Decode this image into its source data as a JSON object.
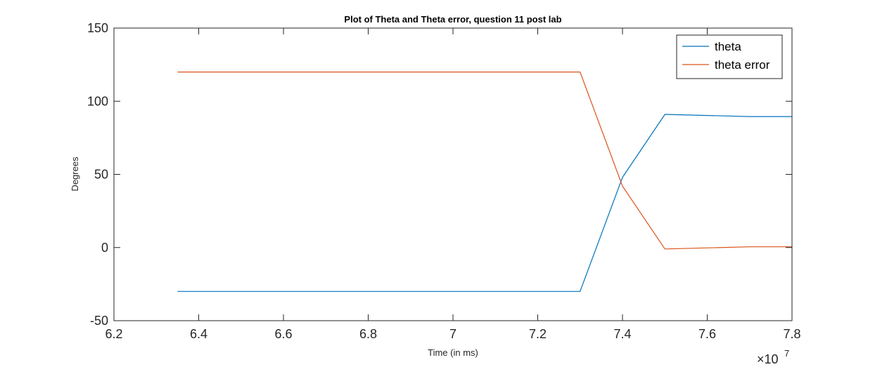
{
  "chart_data": {
    "type": "line",
    "title": "Plot of Theta and Theta error, question 11 post lab",
    "xlabel": "Time (in ms)",
    "ylabel": "Degrees",
    "x_exponent_base": "×10",
    "x_exponent_power": "7",
    "xlim": [
      6.2,
      7.8
    ],
    "ylim": [
      -50,
      150
    ],
    "x_ticks": [
      "6.2",
      "6.4",
      "6.6",
      "6.8",
      "7",
      "7.2",
      "7.4",
      "7.6",
      "7.8"
    ],
    "y_ticks": [
      "-50",
      "0",
      "50",
      "100",
      "150"
    ],
    "grid": false,
    "legend_position": "top-right",
    "series": [
      {
        "name": "theta",
        "color": "#0072bd",
        "x": [
          6.35,
          7.3,
          7.4,
          7.5,
          7.7,
          7.8
        ],
        "y": [
          -30,
          -30,
          48,
          91,
          89.5,
          89.5
        ]
      },
      {
        "name": "theta error",
        "color": "#d95319",
        "x": [
          6.35,
          7.3,
          7.4,
          7.5,
          7.7,
          7.8
        ],
        "y": [
          120,
          120,
          42,
          -1,
          0.5,
          0.5
        ]
      }
    ]
  }
}
